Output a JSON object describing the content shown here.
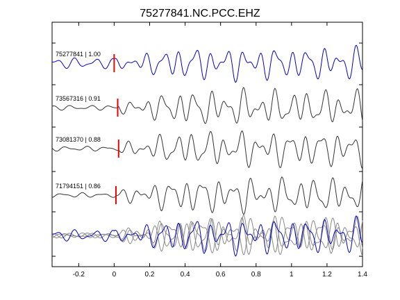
{
  "chart_data": {
    "type": "line",
    "title": "75277841.NC.PCC.EHZ",
    "xlabel": "",
    "ylabel": "",
    "xlim": [
      -0.35,
      1.4
    ],
    "x_ticks": [
      "-0.2",
      "0",
      "0.2",
      "0.4",
      "0.6",
      "0.8",
      "1",
      "1.2",
      "1.4"
    ],
    "x_tick_values": [
      -0.2,
      0,
      0.2,
      0.4,
      0.6,
      0.8,
      1.0,
      1.2,
      1.4
    ],
    "grid": false,
    "traces": [
      {
        "label": "75277841 | 1.00",
        "pick_time": 0.0,
        "color": "#0000cc",
        "seed": 1
      },
      {
        "label": "73567316 | 0.91",
        "pick_time": 0.02,
        "color": "#333333",
        "seed": 2
      },
      {
        "label": "73081370 | 0.88",
        "pick_time": 0.025,
        "color": "#333333",
        "seed": 3
      },
      {
        "label": "71794151 | 0.86",
        "pick_time": 0.01,
        "color": "#333333",
        "seed": 4
      }
    ],
    "stack": {
      "colors": [
        "#888888",
        "#888888",
        "#888888",
        "#0000cc"
      ]
    },
    "pick_color": "#ee0000"
  }
}
